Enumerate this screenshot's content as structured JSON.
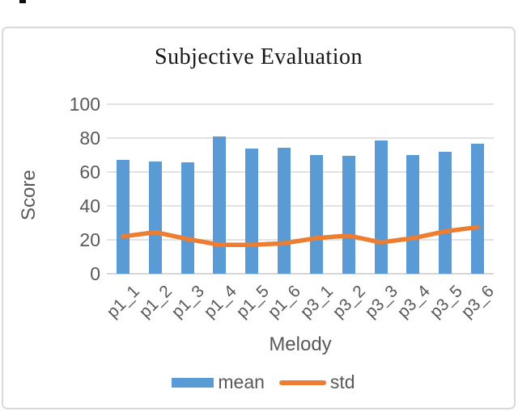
{
  "chart_data": {
    "type": "bar",
    "title": "Subjective Evaluation",
    "xlabel": "Melody",
    "ylabel": "Score",
    "categories": [
      "p1_1",
      "p1_2",
      "p1_3",
      "p1_4",
      "p1_5",
      "p1_6",
      "p3_1",
      "p3_2",
      "p3_3",
      "p3_4",
      "p3_5",
      "p3_6"
    ],
    "series": [
      {
        "name": "mean",
        "kind": "bar",
        "color": "#5B9BD5",
        "values": [
          67,
          66,
          65.5,
          81,
          74,
          74.5,
          70,
          69.5,
          78.5,
          70,
          72,
          76.5
        ]
      },
      {
        "name": "std",
        "kind": "line",
        "color": "#ED7D31",
        "values": [
          22,
          24.5,
          20.5,
          17,
          17,
          18,
          21,
          22.5,
          18.5,
          21,
          25,
          27.5
        ]
      }
    ],
    "ylim": [
      0,
      100
    ],
    "yticks": [
      0,
      20,
      40,
      60,
      80,
      100
    ],
    "grid": true,
    "legend_position": "bottom"
  },
  "colors": {
    "bar": "#5B9BD5",
    "line": "#ED7D31",
    "gridline": "#E2E2E2",
    "axis_text": "#595959",
    "frame_border": "#D9D9D9"
  }
}
